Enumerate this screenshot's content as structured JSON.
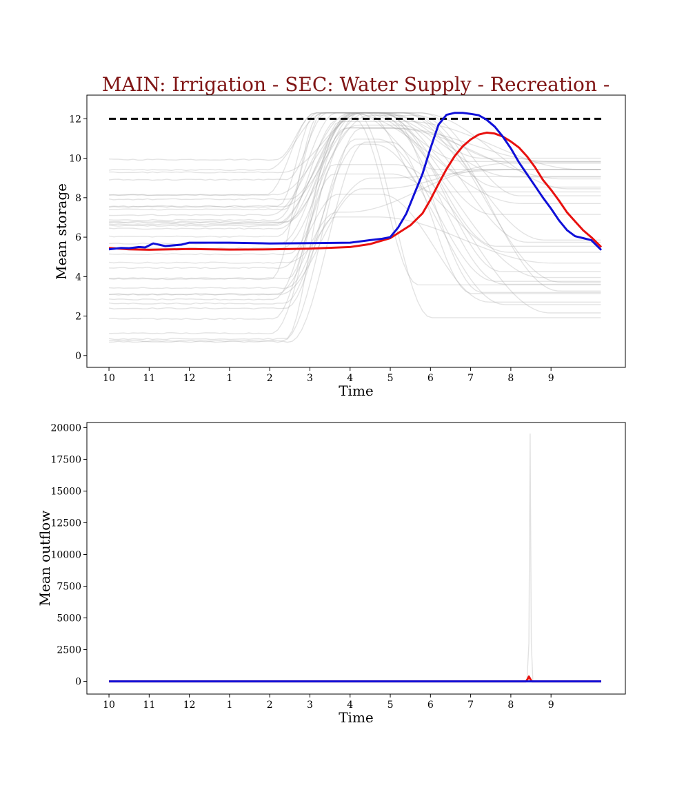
{
  "chart_data": [
    {
      "type": "line",
      "title": "MAIN: Irrigation - SEC: Water Supply - Recreation -",
      "xlabel": "Time",
      "ylabel": "Mean storage",
      "xlim": [
        -0.55,
        12.85
      ],
      "ylim": [
        -0.6,
        13.2
      ],
      "x_ticks": [
        0,
        1,
        2,
        3,
        4,
        5,
        6,
        7,
        8,
        9,
        10,
        11
      ],
      "x_tick_labels": [
        "10",
        "11",
        "12",
        "1",
        "2",
        "3",
        "4",
        "5",
        "6",
        "7",
        "8",
        "9"
      ],
      "y_ticks": [
        0,
        2,
        4,
        6,
        8,
        10,
        12
      ],
      "y_tick_labels": [
        "0",
        "2",
        "4",
        "6",
        "8",
        "10",
        "12"
      ],
      "grid": false,
      "colors": {
        "ensemble": "#9a9a9a",
        "red": "#e8110f",
        "blue": "#1010d8",
        "dashed": "#000000"
      },
      "dashed_line": {
        "x": [
          0,
          12.25
        ],
        "y": [
          12,
          12
        ]
      },
      "series": [
        {
          "color": "red",
          "x": [
            0,
            0.5,
            1,
            2,
            3,
            4,
            5,
            6,
            6.5,
            7,
            7.5,
            7.8,
            8,
            8.2,
            8.4,
            8.6,
            8.8,
            9,
            9.2,
            9.4,
            9.6,
            9.8,
            10,
            10.2,
            10.4,
            10.6,
            10.8,
            11,
            11.2,
            11.4,
            11.6,
            11.8,
            12,
            12.25
          ],
          "y": [
            5.45,
            5.38,
            5.36,
            5.4,
            5.37,
            5.38,
            5.42,
            5.5,
            5.65,
            5.95,
            6.6,
            7.2,
            7.9,
            8.7,
            9.45,
            10.1,
            10.6,
            10.95,
            11.2,
            11.3,
            11.25,
            11.1,
            10.85,
            10.55,
            10.1,
            9.55,
            8.9,
            8.4,
            7.85,
            7.25,
            6.8,
            6.35,
            6.0,
            5.5
          ]
        },
        {
          "color": "blue",
          "x": [
            0,
            0.3,
            0.5,
            0.75,
            0.9,
            1.1,
            1.4,
            1.8,
            2.0,
            2.5,
            3,
            4,
            5,
            6,
            6.5,
            6.8,
            7.0,
            7.2,
            7.4,
            7.6,
            7.8,
            8.0,
            8.2,
            8.4,
            8.6,
            8.8,
            9.0,
            9.2,
            9.4,
            9.6,
            9.8,
            10.0,
            10.2,
            10.4,
            10.6,
            10.8,
            11.0,
            11.2,
            11.4,
            11.6,
            11.8,
            12.0,
            12.25
          ],
          "y": [
            5.38,
            5.45,
            5.44,
            5.5,
            5.48,
            5.68,
            5.55,
            5.62,
            5.72,
            5.72,
            5.72,
            5.68,
            5.7,
            5.72,
            5.85,
            5.92,
            6.0,
            6.5,
            7.2,
            8.2,
            9.2,
            10.5,
            11.7,
            12.2,
            12.3,
            12.3,
            12.25,
            12.18,
            11.95,
            11.6,
            11.1,
            10.5,
            9.8,
            9.2,
            8.6,
            8.0,
            7.45,
            6.85,
            6.35,
            6.05,
            5.95,
            5.85,
            5.35
          ]
        }
      ]
    },
    {
      "type": "line",
      "title": "",
      "xlabel": "Time",
      "ylabel": "Mean outflow",
      "xlim": [
        -0.55,
        12.85
      ],
      "ylim": [
        -1000,
        20400
      ],
      "x_ticks": [
        0,
        1,
        2,
        3,
        4,
        5,
        6,
        7,
        8,
        9,
        10,
        11
      ],
      "x_tick_labels": [
        "10",
        "11",
        "12",
        "1",
        "2",
        "3",
        "4",
        "5",
        "6",
        "7",
        "8",
        "9"
      ],
      "y_ticks": [
        0,
        2500,
        5000,
        7500,
        10000,
        12500,
        15000,
        17500,
        20000
      ],
      "y_tick_labels": [
        "0",
        "2500",
        "5000",
        "7500",
        "10000",
        "12500",
        "15000",
        "17500",
        "20000"
      ],
      "grid": false,
      "colors": {
        "ensemble": "#9a9a9a",
        "red": "#e8110f",
        "blue": "#1010d8"
      },
      "series": [
        {
          "color": "ensemble",
          "x": [
            0,
            10.4,
            10.45,
            10.48,
            10.51,
            10.55,
            12.25
          ],
          "y": [
            0,
            0,
            3000,
            19500,
            3000,
            0,
            0
          ]
        },
        {
          "color": "red",
          "x": [
            0,
            10.38,
            10.42,
            10.45,
            10.48,
            10.52,
            12.25
          ],
          "y": [
            0,
            0,
            200,
            380,
            200,
            0,
            0
          ]
        },
        {
          "color": "blue",
          "x": [
            0,
            12.25
          ],
          "y": [
            0,
            0
          ]
        }
      ]
    }
  ]
}
